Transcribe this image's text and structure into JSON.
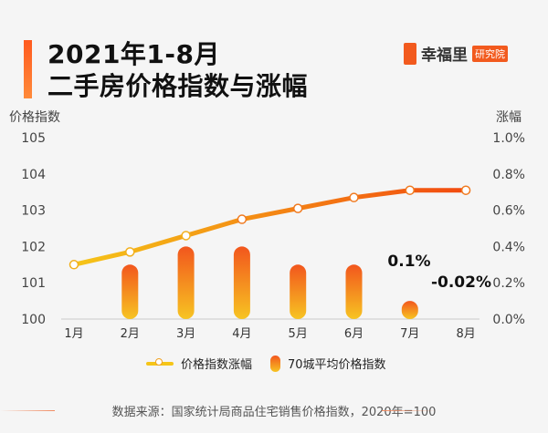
{
  "header": {
    "title_line1": "2021年1-8月",
    "title_line2": "二手房价格指数与涨幅",
    "logo_text": "幸福里",
    "logo_badge": "研究院"
  },
  "colors": {
    "accent": "#f25a1e",
    "line_start": "#f5c518",
    "line_end": "#f24a10",
    "bar_top": "#f2561d",
    "bar_bottom": "#f7c422"
  },
  "chart_data": {
    "type": "bar+line",
    "categories": [
      "1月",
      "2月",
      "3月",
      "4月",
      "5月",
      "6月",
      "7月",
      "8月"
    ],
    "left_axis": {
      "label": "价格指数",
      "range": [
        100,
        105
      ],
      "ticks": [
        "100",
        "101",
        "102",
        "103",
        "104",
        "105"
      ]
    },
    "right_axis": {
      "label": "涨幅",
      "range": [
        0,
        1.0
      ],
      "ticks": [
        "0.0%",
        "0.2%",
        "0.4%",
        "0.6%",
        "0.8%",
        "1.0%"
      ]
    },
    "series": [
      {
        "name": "价格指数涨幅",
        "type": "line",
        "axis": "left",
        "values": [
          101.5,
          101.85,
          102.3,
          102.75,
          103.05,
          103.35,
          103.55,
          103.55
        ]
      },
      {
        "name": "70城平均价格指数",
        "type": "bar",
        "axis": "right",
        "values": [
          null,
          0.3,
          0.4,
          0.4,
          0.3,
          0.3,
          0.1,
          -0.02
        ]
      }
    ],
    "annotations": [
      {
        "category": "7月",
        "text": "0.1%"
      },
      {
        "category": "8月",
        "text": "-0.02%"
      }
    ],
    "grid": false,
    "legend_position": "bottom"
  },
  "footer": {
    "source": "数据来源：国家统计局商品住宅销售价格指数，2020年=100"
  }
}
